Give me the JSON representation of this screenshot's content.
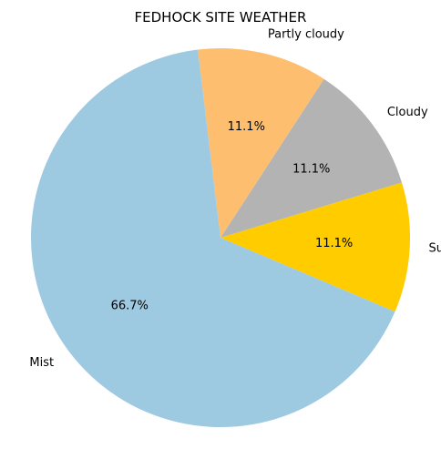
{
  "chart_data": {
    "type": "pie",
    "title": "FEDHOCK SITE WEATHER",
    "slices": [
      {
        "label": "Sunny",
        "value": 11.1,
        "pct_label": "11.1%",
        "color": "#ffcc00"
      },
      {
        "label": "Cloudy",
        "value": 11.1,
        "pct_label": "11.1%",
        "color": "#b3b3b3"
      },
      {
        "label": "Partly cloudy",
        "value": 11.1,
        "pct_label": "11.1%",
        "color": "#fdbf6f"
      },
      {
        "label": "Mist",
        "value": 66.7,
        "pct_label": "66.7%",
        "color": "#9ecae1"
      }
    ],
    "start_angle_deg": -23,
    "direction": "counterclockwise",
    "legend": "none"
  }
}
